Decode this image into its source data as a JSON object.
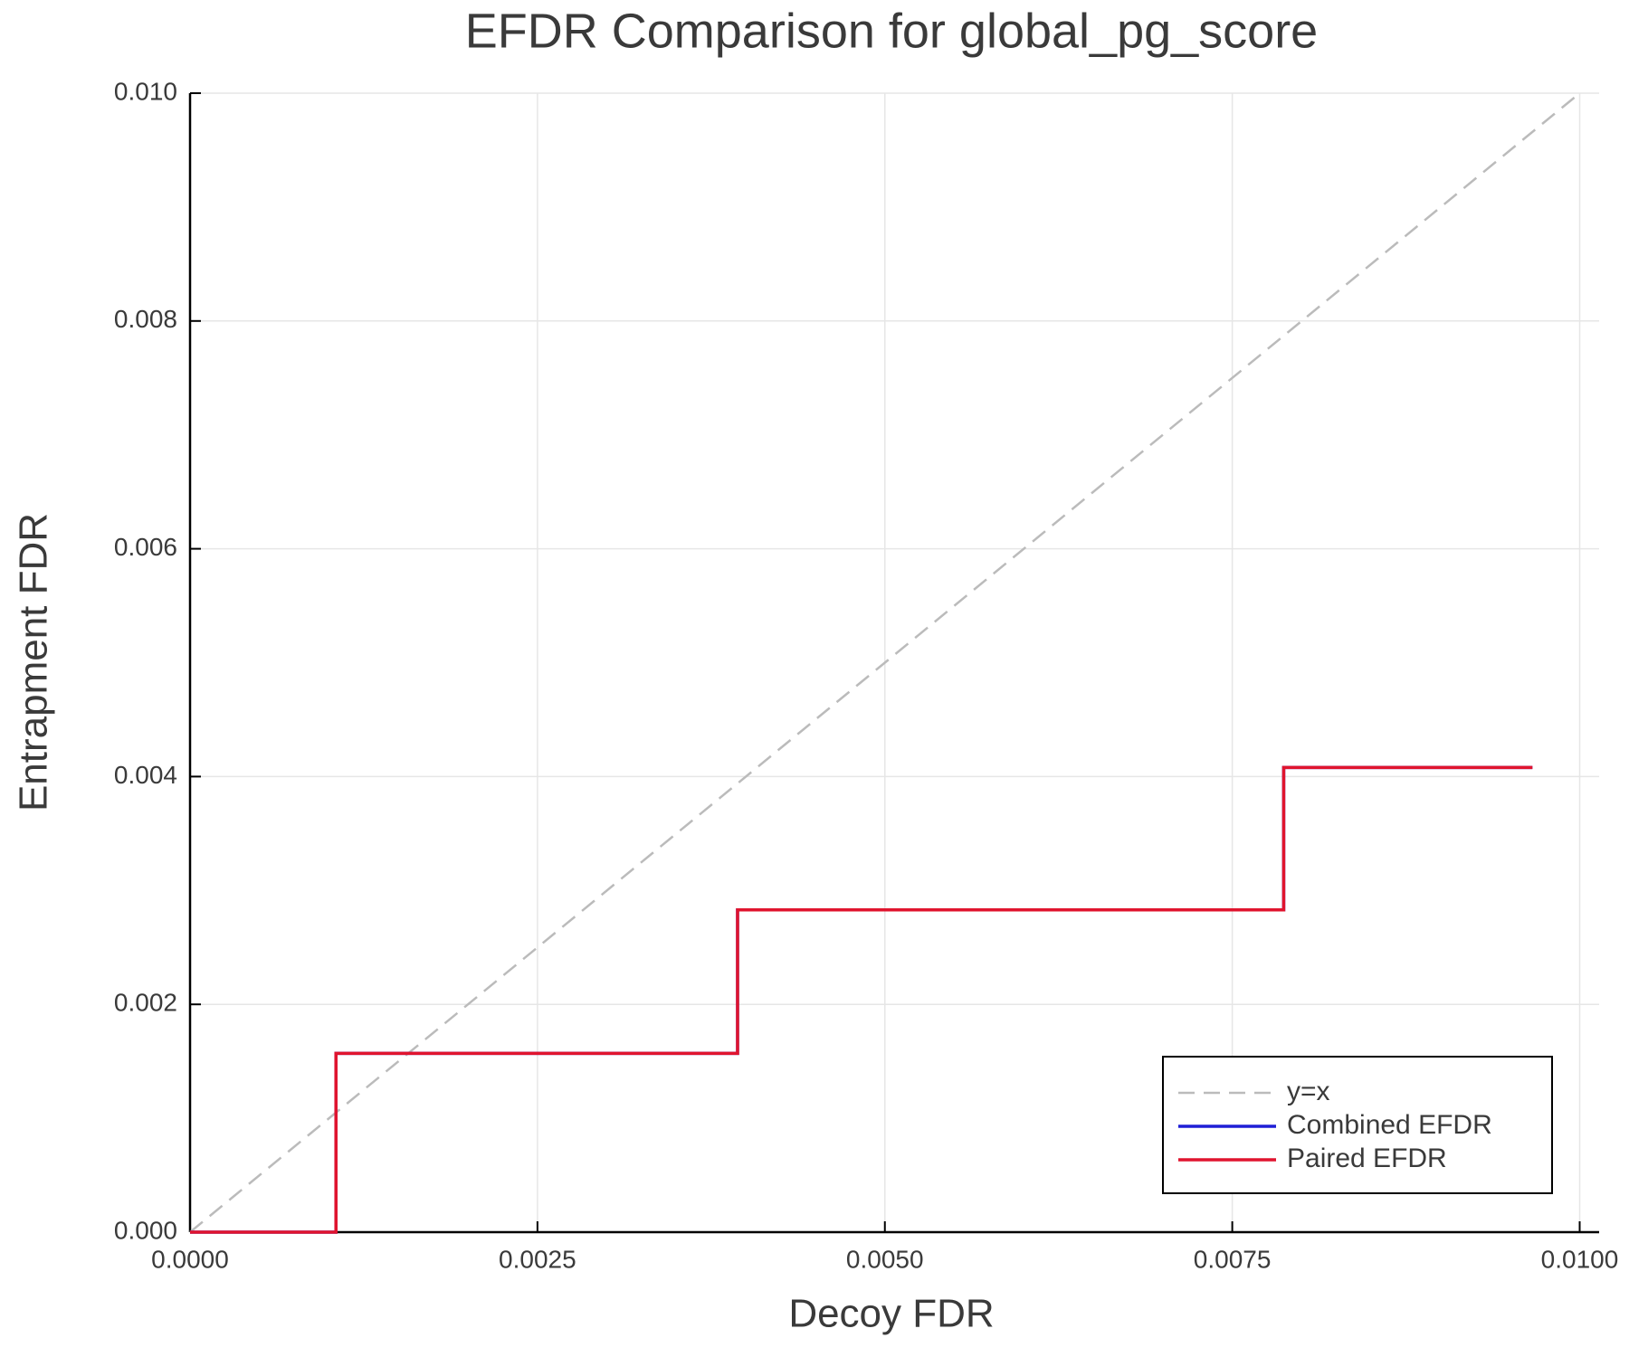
{
  "chart_data": {
    "type": "line",
    "title": "EFDR Comparison for global_pg_score",
    "x_label": "Decoy FDR",
    "y_label": "Entrapment FDR",
    "xlim": [
      0,
      0.01014
    ],
    "ylim": [
      0,
      0.01
    ],
    "xticks": [
      {
        "value": 0,
        "label": "0.0000"
      },
      {
        "value": 0.0025,
        "label": "0.0025"
      },
      {
        "value": 0.005,
        "label": "0.0050"
      },
      {
        "value": 0.0075,
        "label": "0.0075"
      },
      {
        "value": 0.01,
        "label": "0.0100"
      }
    ],
    "yticks": [
      {
        "value": 0,
        "label": "0.000"
      },
      {
        "value": 0.002,
        "label": "0.002"
      },
      {
        "value": 0.004,
        "label": "0.004"
      },
      {
        "value": 0.006,
        "label": "0.006"
      },
      {
        "value": 0.008,
        "label": "0.008"
      },
      {
        "value": 0.01,
        "label": "0.010"
      }
    ],
    "grid": true,
    "legend": "bottom-right",
    "series": [
      {
        "name": "y=x",
        "color": "#bbbbbb",
        "linestyle": "dashed",
        "x": [
          0,
          0.01
        ],
        "values": [
          0,
          0.01
        ]
      },
      {
        "name": "Combined EFDR",
        "color": "#1f1fd6",
        "linestyle": "solid",
        "x": [
          0,
          0.00105,
          0.00105,
          0.00394,
          0.00394,
          0.00787,
          0.00787,
          0.00966
        ],
        "values": [
          0,
          0,
          0.00157,
          0.00157,
          0.00283,
          0.00283,
          0.00408,
          0.00408
        ]
      },
      {
        "name": "Paired EFDR",
        "color": "#e0142e",
        "linestyle": "solid",
        "x": [
          0,
          0.00105,
          0.00105,
          0.00394,
          0.00394,
          0.00787,
          0.00787,
          0.00966
        ],
        "values": [
          0,
          0,
          0.00157,
          0.00157,
          0.00283,
          0.00283,
          0.00408,
          0.00408
        ]
      }
    ]
  }
}
